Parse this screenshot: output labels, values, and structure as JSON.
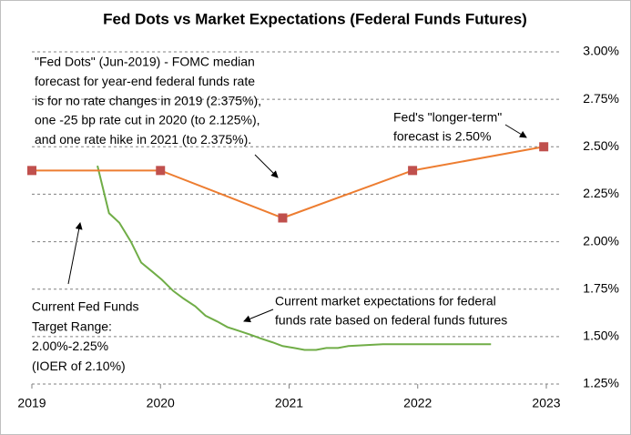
{
  "chart_data": {
    "type": "line",
    "title": "Fed Dots vs Market Expectations (Federal Funds Futures)",
    "xlim": [
      2019,
      2023
    ],
    "xticks": [
      2019,
      2020,
      2021,
      2022,
      2023
    ],
    "ylim": [
      1.25,
      3.0
    ],
    "yticks": [
      {
        "value": 1.25,
        "label": "1.25%"
      },
      {
        "value": 1.5,
        "label": "1.50%"
      },
      {
        "value": 1.75,
        "label": "1.75%"
      },
      {
        "value": 2.0,
        "label": "2.00%"
      },
      {
        "value": 2.25,
        "label": "2.25%"
      },
      {
        "value": 2.5,
        "label": "2.50%"
      },
      {
        "value": 2.75,
        "label": "2.75%"
      },
      {
        "value": 3.0,
        "label": "3.00%"
      }
    ],
    "grid": true,
    "series": [
      {
        "color": "#70ad47",
        "marker": "none",
        "x": [
          2019.51,
          2019.6,
          2019.68,
          2019.77,
          2019.85,
          2019.94,
          2020.01,
          2020.1,
          2020.18,
          2020.27,
          2020.35,
          2020.44,
          2020.52,
          2020.61,
          2020.7,
          2020.78,
          2020.87,
          2020.95,
          2021.04,
          2021.12,
          2021.21,
          2021.29,
          2021.38,
          2021.46,
          2021.73,
          2022.57
        ],
        "values": [
          2.4,
          2.15,
          2.1,
          2.0,
          1.89,
          1.84,
          1.8,
          1.74,
          1.7,
          1.66,
          1.61,
          1.58,
          1.55,
          1.53,
          1.51,
          1.49,
          1.47,
          1.45,
          1.44,
          1.43,
          1.43,
          1.44,
          1.44,
          1.45,
          1.46,
          1.46
        ]
      },
      {
        "color": "#ed7d31",
        "marker": "square",
        "marker_color": "#c0504d",
        "x": [
          2019.0,
          2020.0,
          2020.95,
          2021.96,
          2022.98
        ],
        "values": [
          2.375,
          2.375,
          2.125,
          2.375,
          2.5
        ]
      }
    ],
    "annotations": [
      {
        "lines": [
          "\"Fed Dots\" (Jun-2019) - FOMC median",
          "forecast for year-end federal funds rate",
          "is for no rate changes in 2019 (2.375%),",
          "one -25 bp rate cut in 2020 (to 2.125%),",
          "and one rate hike in 2021 (to 2.375%)."
        ]
      },
      {
        "lines": [
          "Fed's \"longer-term\"",
          "forecast is 2.50%"
        ]
      },
      {
        "lines": [
          "Current market expectations for federal",
          "funds rate based on federal funds futures"
        ]
      },
      {
        "lines": [
          "Current Fed Funds",
          "Target Range:",
          "2.00%-2.25%",
          "(IOER of 2.10%)"
        ]
      }
    ]
  }
}
